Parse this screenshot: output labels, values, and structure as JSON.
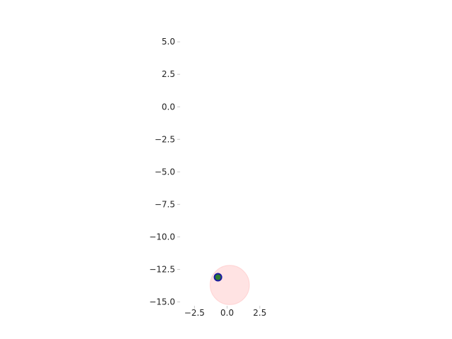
{
  "chart_data": {
    "type": "scatter",
    "title": "",
    "xlabel": "",
    "ylabel": "",
    "xlim": [
      -3.6,
      4.4
    ],
    "ylim": [
      -15.3,
      5.5
    ],
    "grid": false,
    "x_ticks": [
      {
        "value": -2.5,
        "label": "−2.5"
      },
      {
        "value": 0.0,
        "label": "0.0"
      },
      {
        "value": 2.5,
        "label": "2.5"
      }
    ],
    "y_ticks": [
      {
        "value": 5.0,
        "label": "5.0"
      },
      {
        "value": 2.5,
        "label": "2.5"
      },
      {
        "value": 0.0,
        "label": "0.0"
      },
      {
        "value": -2.5,
        "label": "−2.5"
      },
      {
        "value": -5.0,
        "label": "−5.0"
      },
      {
        "value": -7.5,
        "label": "−7.5"
      },
      {
        "value": -10.0,
        "label": "−10.0"
      },
      {
        "value": -12.5,
        "label": "−12.5"
      },
      {
        "value": -15.0,
        "label": "−15.0"
      }
    ],
    "circle": {
      "cx": 0.2,
      "cy": -13.7,
      "r": 1.5,
      "color": "#ffcccc"
    },
    "points": [
      {
        "x": -0.7,
        "y": -13.1,
        "color": "#2e7d32",
        "edge_color": "#1a1aa0"
      }
    ]
  }
}
